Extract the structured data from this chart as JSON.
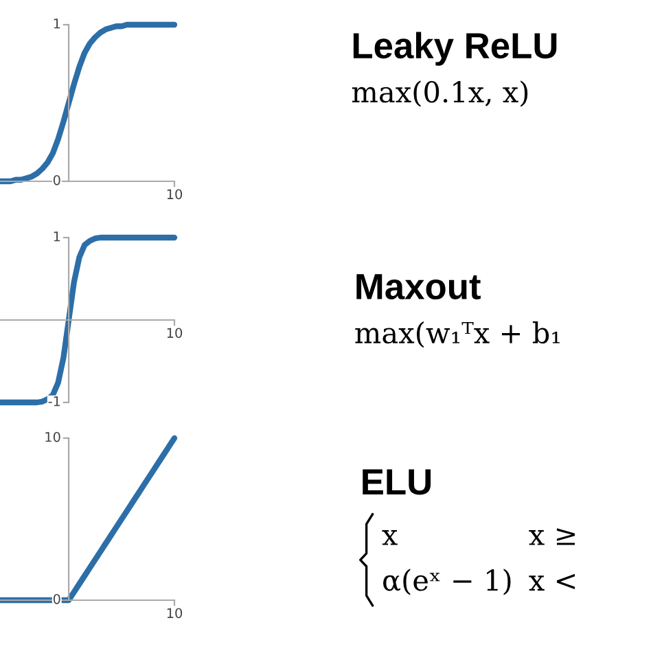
{
  "chart_data": [
    {
      "type": "line",
      "categories": [
        null,
        null,
        null,
        null,
        null,
        null,
        null,
        null,
        null,
        null,
        null,
        null,
        null,
        null,
        null,
        null,
        null,
        null,
        null,
        null,
        null,
        null,
        null,
        null,
        null,
        null,
        null,
        null,
        null,
        null,
        null,
        null,
        null,
        null
      ],
      "values": [
        0.0,
        0.0,
        0.0,
        0.01,
        0.01,
        0.02,
        0.03,
        0.05,
        0.08,
        0.12,
        0.18,
        0.27,
        0.38,
        0.5,
        0.62,
        0.73,
        0.82,
        0.88,
        0.92,
        0.95,
        0.97,
        0.98,
        0.99,
        0.99,
        1.0,
        1.0,
        1.0,
        1.0,
        1.0,
        1.0,
        1.0,
        1.0,
        1.0,
        1.0
      ],
      "color": "#2c6ea8",
      "ylim": [
        0,
        1
      ],
      "yticks": [
        0,
        1
      ],
      "annotations": [
        "10"
      ],
      "line_style": "solid"
    },
    {
      "type": "line",
      "categories": [
        null,
        null,
        null,
        null,
        null,
        null,
        null,
        null,
        null,
        null,
        null,
        null,
        null,
        null,
        null,
        null,
        null,
        null,
        null,
        null,
        null,
        null,
        null,
        null,
        null,
        null,
        null,
        null,
        null,
        null,
        null,
        null,
        null,
        null
      ],
      "values": [
        -1.0,
        -1.0,
        -1.0,
        -1.0,
        -1.0,
        -1.0,
        -1.0,
        -1.0,
        -0.99,
        -0.96,
        -0.91,
        -0.76,
        -0.46,
        0,
        0.46,
        0.76,
        0.91,
        0.96,
        0.99,
        1.0,
        1.0,
        1.0,
        1.0,
        1.0,
        1.0,
        1.0,
        1.0,
        1.0,
        1.0,
        1.0,
        1.0,
        1.0,
        1.0,
        1.0
      ],
      "color": "#2c6ea8",
      "ylim": [
        -1,
        1
      ],
      "yticks": [
        -1,
        1
      ],
      "annotations": [
        "10"
      ],
      "line_style": "solid"
    },
    {
      "type": "line",
      "categories": [
        null,
        null,
        null,
        null,
        null,
        null,
        null,
        null,
        null,
        null,
        null,
        null,
        null,
        null,
        null,
        null,
        null,
        null,
        null,
        null,
        null,
        null,
        null,
        null,
        null,
        null,
        null,
        null,
        null,
        null,
        null,
        null,
        null,
        null
      ],
      "values": [
        0,
        0,
        0,
        0,
        0,
        0,
        0,
        0,
        0,
        0,
        0,
        0,
        0,
        0,
        0.5,
        1,
        1.5,
        2,
        2.5,
        3,
        3.5,
        4,
        4.5,
        5,
        5.5,
        6,
        6.5,
        7,
        7.5,
        8,
        8.5,
        9,
        9.5,
        10
      ],
      "color": "#2c6ea8",
      "ylim": [
        0,
        10
      ],
      "yticks": [
        0,
        10
      ],
      "annotations": [
        "10"
      ],
      "line_style": "solid"
    },
    {
      "type": "other",
      "annotations": [
        "Leaky ReLU",
        "max(0.1x, x)",
        "Maxout",
        "max(w₁ᵀx + b₁",
        "ELU",
        "x",
        "x ≥",
        "α(eˣ − 1)",
        "x <"
      ]
    }
  ]
}
